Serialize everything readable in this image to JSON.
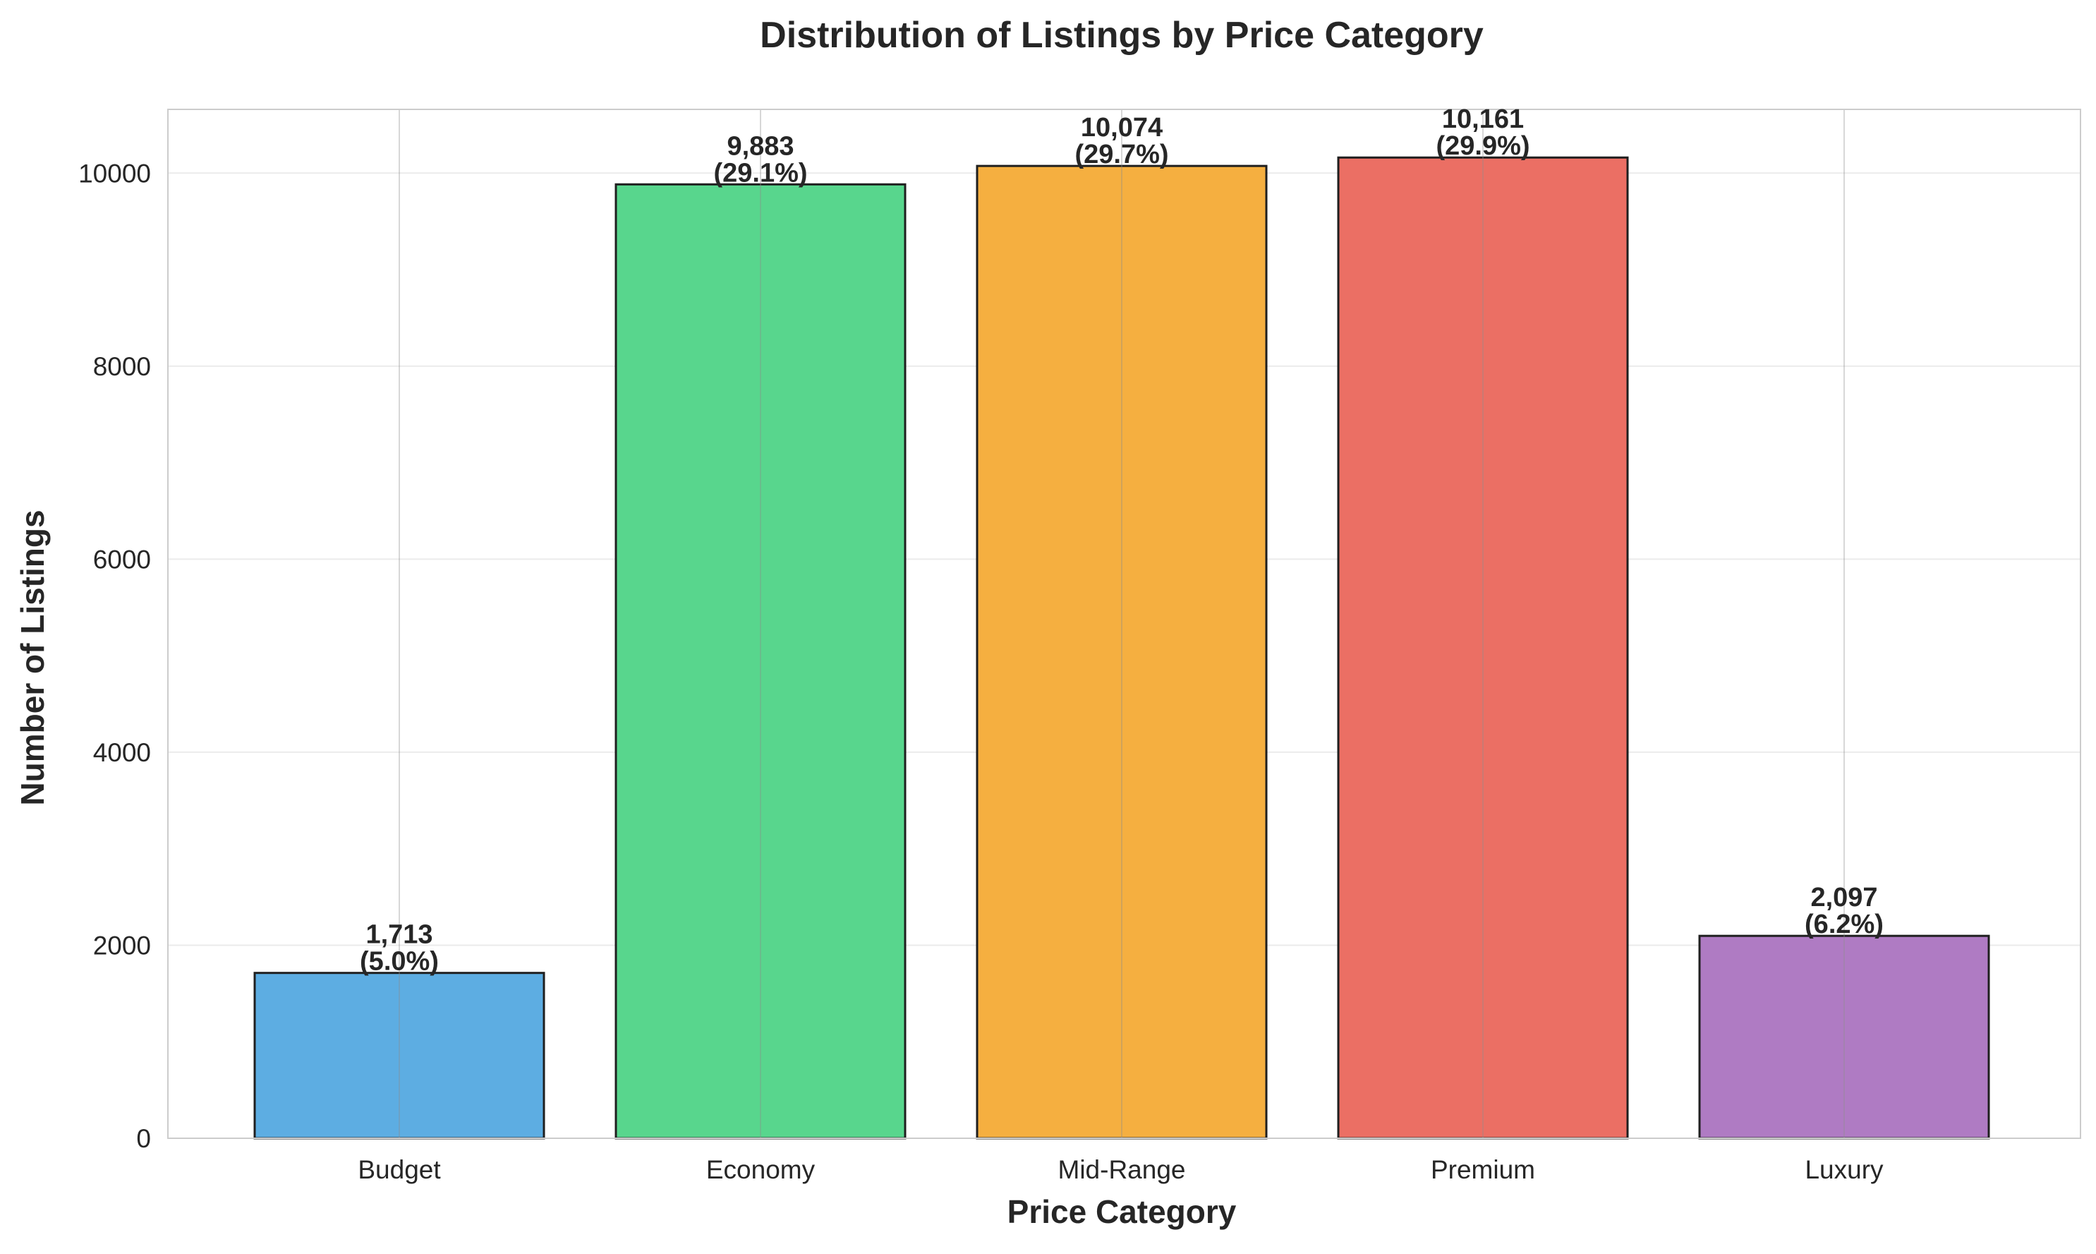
{
  "chart_data": {
    "type": "bar",
    "title": "Distribution of Listings by Price Category",
    "xlabel": "Price Category",
    "ylabel": "Number of Listings",
    "categories": [
      "Budget",
      "Economy",
      "Mid-Range",
      "Premium",
      "Luxury"
    ],
    "values": [
      1713,
      9883,
      10074,
      10161,
      2097
    ],
    "value_labels": [
      "1,713",
      "9,883",
      "10,074",
      "10,161",
      "2,097"
    ],
    "percent_labels": [
      "(5.0%)",
      "(29.1%)",
      "(29.7%)",
      "(29.9%)",
      "(6.2%)"
    ],
    "colors": [
      "#5DADE2",
      "#58D68D",
      "#F5AF40",
      "#EB6F64",
      "#AF7BC3"
    ],
    "ylim": [
      0,
      10660
    ],
    "yticks": [
      0,
      2000,
      4000,
      6000,
      8000,
      10000
    ],
    "ytick_labels": [
      "0",
      "2000",
      "4000",
      "6000",
      "8000",
      "10000"
    ],
    "grid": true,
    "legend": "none"
  }
}
